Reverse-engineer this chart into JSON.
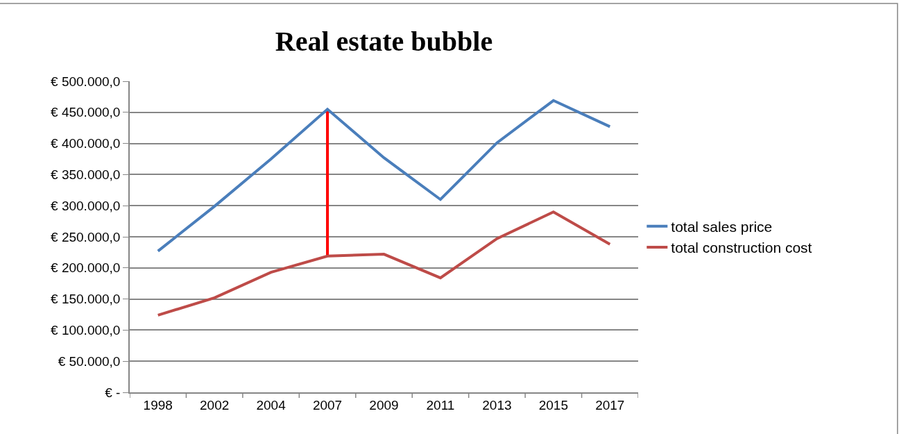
{
  "chart_data": {
    "type": "line",
    "title": "Real estate bubble",
    "categories": [
      "1998",
      "2002",
      "2004",
      "2007",
      "2009",
      "2011",
      "2013",
      "2015",
      "2017"
    ],
    "series": [
      {
        "name": "total sales price",
        "color": "#4a7ebb",
        "values": [
          227000,
          299000,
          375000,
          455000,
          377000,
          310000,
          401000,
          469000,
          427000
        ]
      },
      {
        "name": "total construction cost",
        "color": "#be4b48",
        "values": [
          124000,
          152000,
          193000,
          219000,
          222000,
          184000,
          247000,
          290000,
          238000
        ]
      },
      {
        "type": "bar",
        "color": "#ff0000",
        "base": [
          null,
          null,
          null,
          219000,
          null,
          null,
          null,
          null,
          null
        ],
        "values": [
          null,
          null,
          null,
          236000,
          null,
          null,
          null,
          null,
          null
        ]
      }
    ],
    "ylim": [
      0,
      500000
    ],
    "yticks": [
      {
        "value": 0,
        "label": "€ -"
      },
      {
        "value": 50000,
        "label": "€ 50.000,0"
      },
      {
        "value": 100000,
        "label": "€ 100.000,0"
      },
      {
        "value": 150000,
        "label": "€ 150.000,0"
      },
      {
        "value": 200000,
        "label": "€ 200.000,0"
      },
      {
        "value": 250000,
        "label": "€ 250.000,0"
      },
      {
        "value": 300000,
        "label": "€ 300.000,0"
      },
      {
        "value": 350000,
        "label": "€ 350.000,0"
      },
      {
        "value": 400000,
        "label": "€ 400.000,0"
      },
      {
        "value": 450000,
        "label": "€ 450.000,0"
      },
      {
        "value": 500000,
        "label": "€ 500.000,0"
      }
    ],
    "grid": "y",
    "legend": "right",
    "marker": "none",
    "line_style": "solid"
  }
}
